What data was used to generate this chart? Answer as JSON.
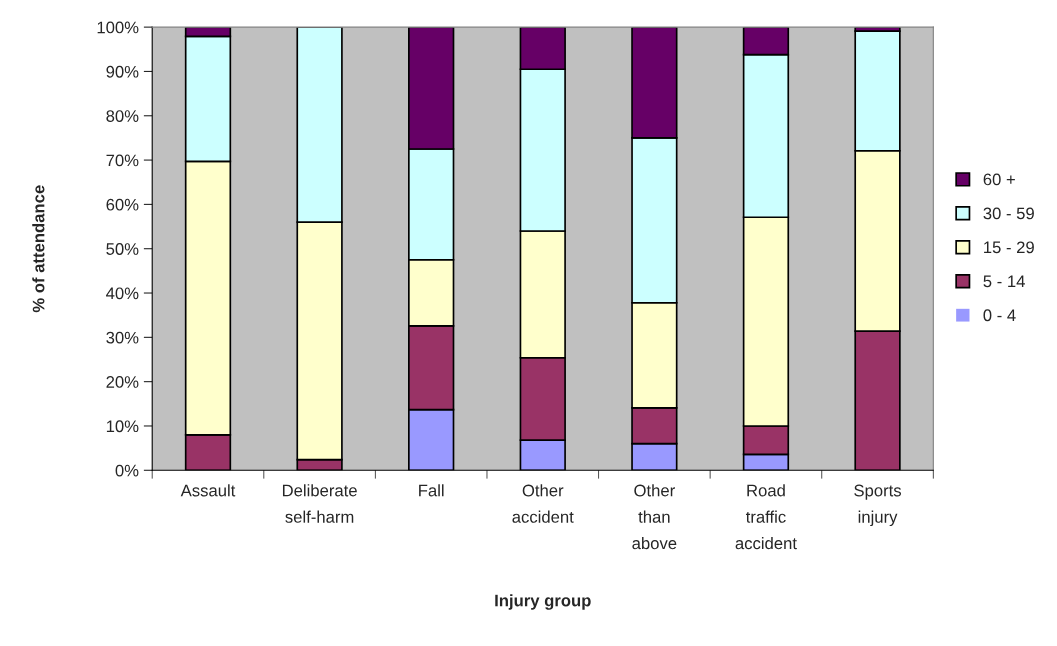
{
  "chart_data": {
    "type": "bar",
    "stacked": true,
    "xlabel": "Injury group",
    "ylabel": "% of attendance",
    "categories": [
      "Assault",
      "Deliberate self-harm",
      "Fall",
      "Other accident",
      "Other than above",
      "Road traffic accident",
      "Sports injury"
    ],
    "series": [
      {
        "name": "0 - 4",
        "color": "#9999ff",
        "values": [
          0,
          0,
          13.7,
          6.8,
          6.0,
          3.6,
          0
        ]
      },
      {
        "name": "5 - 14",
        "color": "#993366",
        "values": [
          8.0,
          2.4,
          18.9,
          18.6,
          8.1,
          6.4,
          31.4
        ]
      },
      {
        "name": "15 - 29",
        "color": "#ffffcc",
        "values": [
          61.7,
          53.6,
          14.9,
          28.6,
          23.7,
          47.1,
          40.7
        ]
      },
      {
        "name": "30 - 59",
        "color": "#ccffff",
        "values": [
          28.2,
          44.0,
          25.0,
          36.5,
          37.2,
          36.7,
          27.0
        ]
      },
      {
        "name": "60 +",
        "color": "#660066",
        "values": [
          2.1,
          0,
          27.5,
          9.5,
          25.0,
          6.2,
          0.9
        ]
      }
    ],
    "ylim": [
      0,
      100
    ],
    "yticks": [
      {
        "value": 0,
        "label": "0%"
      },
      {
        "value": 10,
        "label": "10%"
      },
      {
        "value": 20,
        "label": "20%"
      },
      {
        "value": 30,
        "label": "30%"
      },
      {
        "value": 40,
        "label": "40%"
      },
      {
        "value": 50,
        "label": "50%"
      },
      {
        "value": 60,
        "label": "60%"
      },
      {
        "value": 70,
        "label": "70%"
      },
      {
        "value": 80,
        "label": "80%"
      },
      {
        "value": 90,
        "label": "90%"
      },
      {
        "value": 100,
        "label": "100%"
      }
    ],
    "legend": "right",
    "grid": false
  }
}
